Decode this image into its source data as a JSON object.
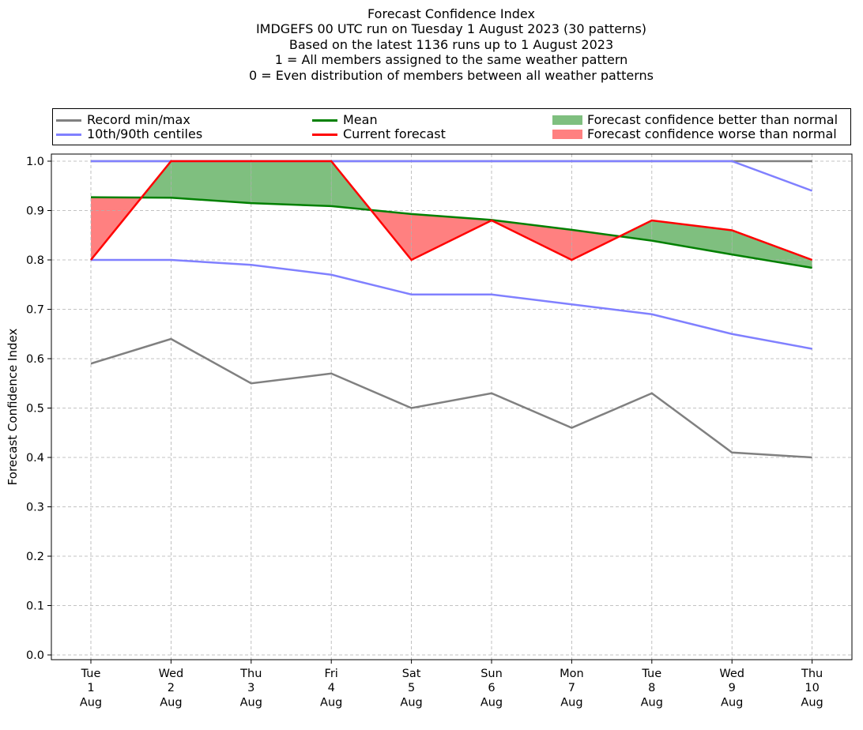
{
  "chart_data": {
    "type": "line",
    "title_lines": [
      "Forecast Confidence Index",
      "IMDGEFS 00 UTC run on Tuesday 1 August 2023 (30 patterns)",
      "Based on the latest 1136 runs up to 1 August 2023",
      "1 = All members assigned to the same weather pattern",
      "0 = Even distribution of members between all weather patterns"
    ],
    "ylabel": "Forecast Confidence Index",
    "xlabel": "",
    "ylim": [
      0.0,
      1.0
    ],
    "yticks": [
      "0.0",
      "0.1",
      "0.2",
      "0.3",
      "0.4",
      "0.5",
      "0.6",
      "0.7",
      "0.8",
      "0.9",
      "1.0"
    ],
    "categories": [
      "Tue\n1\nAug",
      "Wed\n2\nAug",
      "Thu\n3\nAug",
      "Fri\n4\nAug",
      "Sat\n5\nAug",
      "Sun\n6\nAug",
      "Mon\n7\nAug",
      "Tue\n8\nAug",
      "Wed\n9\nAug",
      "Thu\n10\nAug"
    ],
    "grid": true,
    "legend_position": "top",
    "series": [
      {
        "key": "record_min",
        "name": "Record min/max",
        "color": "#808080",
        "values": [
          0.59,
          0.64,
          0.55,
          0.57,
          0.5,
          0.53,
          0.46,
          0.53,
          0.41,
          0.4
        ]
      },
      {
        "key": "record_max",
        "name": "Record min/max",
        "color": "#808080",
        "values": [
          1.0,
          1.0,
          1.0,
          1.0,
          1.0,
          1.0,
          1.0,
          1.0,
          1.0,
          1.0
        ]
      },
      {
        "key": "p10",
        "name": "10th/90th centiles",
        "color": "#8080ff",
        "values": [
          0.8,
          0.8,
          0.79,
          0.77,
          0.73,
          0.73,
          0.71,
          0.69,
          0.65,
          0.62
        ]
      },
      {
        "key": "p90",
        "name": "10th/90th centiles",
        "color": "#8080ff",
        "values": [
          1.0,
          1.0,
          1.0,
          1.0,
          1.0,
          1.0,
          1.0,
          1.0,
          1.0,
          0.94
        ]
      },
      {
        "key": "mean",
        "name": "Mean",
        "color": "#008000",
        "values": [
          0.927,
          0.926,
          0.915,
          0.909,
          0.893,
          0.881,
          0.861,
          0.839,
          0.811,
          0.784
        ]
      },
      {
        "key": "current",
        "name": "Current forecast",
        "color": "#ff0000",
        "values": [
          0.8,
          1.0,
          1.0,
          1.0,
          0.8,
          0.88,
          0.8,
          0.88,
          0.86,
          0.8
        ]
      }
    ],
    "fills": {
      "better": {
        "name": "Forecast confidence better than normal",
        "color": "#7fbf7f"
      },
      "worse": {
        "name": "Forecast confidence worse than normal",
        "color": "#ff8080"
      }
    }
  },
  "legend": {
    "record": "Record min/max",
    "centiles": "10th/90th centiles",
    "mean": "Mean",
    "current": "Current forecast",
    "better": "Forecast confidence better than normal",
    "worse": "Forecast confidence worse than normal"
  }
}
